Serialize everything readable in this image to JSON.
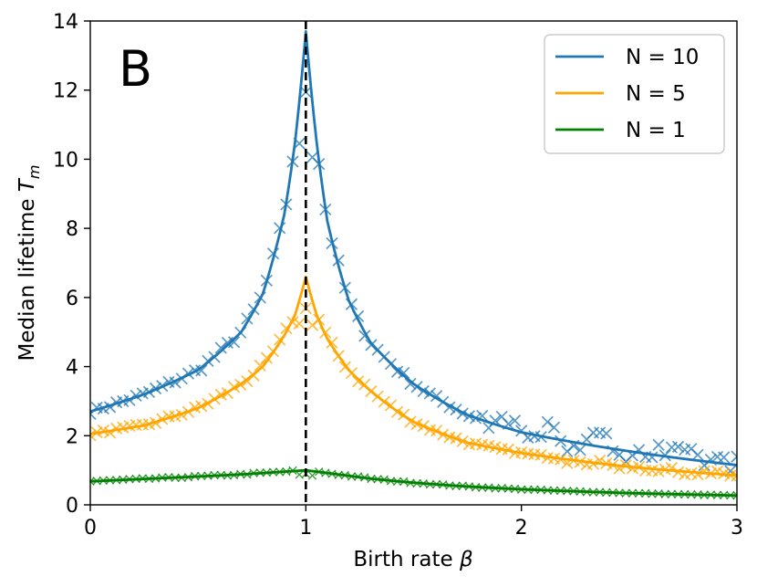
{
  "chart_data": {
    "type": "line",
    "panel_label": "B",
    "xlabel": "Birth rate",
    "xlabel_symbol": "β",
    "ylabel": "Median lifetime",
    "ylabel_symbol": "T",
    "ylabel_subscript": "m",
    "xlim": [
      0,
      3
    ],
    "ylim": [
      0,
      14
    ],
    "xticks": [
      0,
      1,
      2,
      3
    ],
    "yticks": [
      0,
      2,
      4,
      6,
      8,
      10,
      12,
      14
    ],
    "grid": false,
    "legend_position": "top-right",
    "vline": {
      "x": 1,
      "style": "dashed",
      "color": "#000000"
    },
    "series": [
      {
        "name": "N = 10",
        "color": "#1f77b4",
        "peak": 13.7,
        "x": [
          0,
          0.25,
          0.5,
          0.7,
          0.8,
          0.9,
          0.95,
          1.0,
          1.05,
          1.1,
          1.2,
          1.3,
          1.5,
          1.75,
          2.0,
          2.5,
          3.0
        ],
        "values": [
          2.7,
          3.2,
          3.9,
          5.0,
          6.1,
          8.4,
          10.5,
          13.7,
          10.5,
          8.2,
          5.9,
          4.7,
          3.5,
          2.6,
          2.1,
          1.55,
          1.15
        ]
      },
      {
        "name": "N = 5",
        "color": "#ffa500",
        "peak": 6.6,
        "x": [
          0,
          0.25,
          0.5,
          0.7,
          0.8,
          0.9,
          0.95,
          1.0,
          1.05,
          1.1,
          1.2,
          1.3,
          1.5,
          1.75,
          2.0,
          2.5,
          3.0
        ],
        "values": [
          2.05,
          2.3,
          2.8,
          3.5,
          4.0,
          4.9,
          5.5,
          6.6,
          5.5,
          4.8,
          3.9,
          3.3,
          2.4,
          1.8,
          1.5,
          1.1,
          0.85
        ]
      },
      {
        "name": "N = 1",
        "color": "#008000",
        "peak": 1.0,
        "x": [
          0,
          0.25,
          0.5,
          0.7,
          0.8,
          0.9,
          0.95,
          1.0,
          1.05,
          1.1,
          1.2,
          1.3,
          1.5,
          1.75,
          2.0,
          2.5,
          3.0
        ],
        "values": [
          0.68,
          0.75,
          0.82,
          0.88,
          0.92,
          0.96,
          0.98,
          1.0,
          0.96,
          0.92,
          0.84,
          0.76,
          0.64,
          0.53,
          0.45,
          0.34,
          0.27
        ]
      }
    ],
    "scatter": {
      "marker": "x",
      "n_points_per_series": 100,
      "note": "Simulation markers track each theoretical curve; noisier for N = 10 at large beta."
    }
  }
}
